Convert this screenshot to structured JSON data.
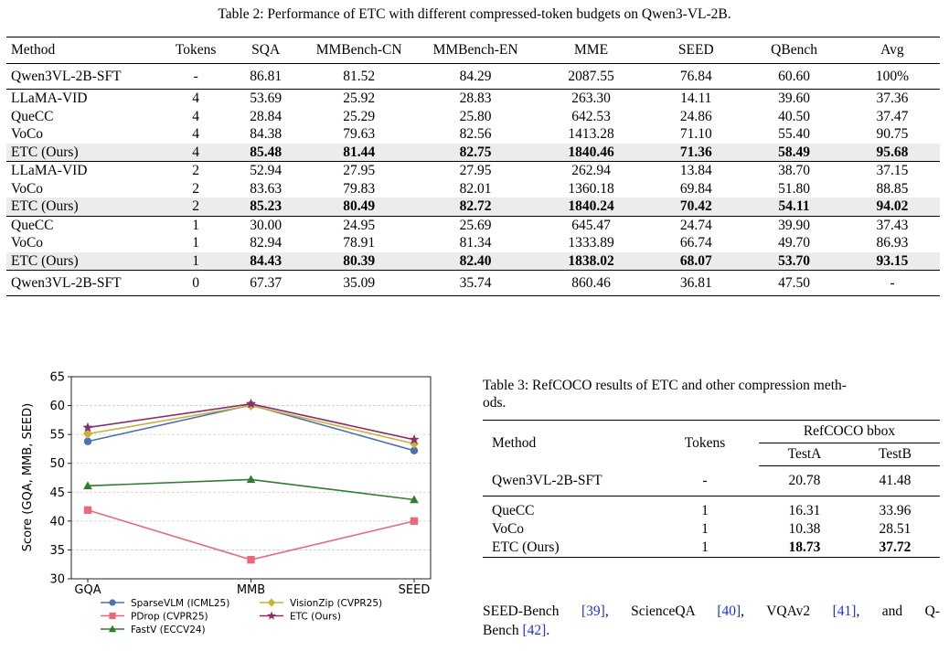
{
  "table2": {
    "caption": "Table 2: Performance of ETC with different compressed-token budgets on Qwen3-VL-2B.",
    "headers": [
      "Method",
      "Tokens",
      "SQA",
      "MMBench-CN",
      "MMBench-EN",
      "MME",
      "SEED",
      "QBench",
      "Avg"
    ],
    "rows": [
      {
        "cells": [
          "Qwen3VL-2B-SFT",
          "-",
          "86.81",
          "81.52",
          "84.29",
          "2087.55",
          "76.84",
          "60.60",
          "100%"
        ]
      },
      {
        "cells": [
          "LLaMA-VID",
          "4",
          "53.69",
          "25.92",
          "28.83",
          "263.30",
          "14.11",
          "39.60",
          "37.36"
        ]
      },
      {
        "cells": [
          "QueCC",
          "4",
          "28.84",
          "25.29",
          "25.80",
          "642.53",
          "24.86",
          "40.50",
          "37.47"
        ]
      },
      {
        "cells": [
          "VoCo",
          "4",
          "84.38",
          "79.63",
          "82.56",
          "1413.28",
          "71.10",
          "55.40",
          "90.75"
        ]
      },
      {
        "cells": [
          "ETC (Ours)",
          "4",
          "85.48",
          "81.44",
          "82.75",
          "1840.46",
          "71.36",
          "58.49",
          "95.68"
        ]
      },
      {
        "cells": [
          "LLaMA-VID",
          "2",
          "52.94",
          "27.95",
          "27.95",
          "262.94",
          "13.84",
          "38.70",
          "37.15"
        ]
      },
      {
        "cells": [
          "VoCo",
          "2",
          "83.63",
          "79.83",
          "82.01",
          "1360.18",
          "69.84",
          "51.80",
          "88.85"
        ]
      },
      {
        "cells": [
          "ETC (Ours)",
          "2",
          "85.23",
          "80.49",
          "82.72",
          "1840.24",
          "70.42",
          "54.11",
          "94.02"
        ]
      },
      {
        "cells": [
          "QueCC",
          "1",
          "30.00",
          "24.95",
          "25.69",
          "645.47",
          "24.74",
          "39.90",
          "37.43"
        ]
      },
      {
        "cells": [
          "VoCo",
          "1",
          "82.94",
          "78.91",
          "81.34",
          "1333.89",
          "66.74",
          "49.70",
          "86.93"
        ]
      },
      {
        "cells": [
          "ETC (Ours)",
          "1",
          "84.43",
          "80.39",
          "82.40",
          "1838.02",
          "68.07",
          "53.70",
          "93.15"
        ]
      },
      {
        "cells": [
          "Qwen3VL-2B-SFT",
          "0",
          "67.37",
          "35.09",
          "35.74",
          "860.46",
          "36.81",
          "47.50",
          "-"
        ]
      }
    ]
  },
  "table3": {
    "caption": "Table 3: RefCOCO results of ETC and other compression methods.",
    "caption_line1": "Table 3: RefCOCO results of ETC and other compression meth-",
    "caption_line2": "ods.",
    "h_method": "Method",
    "h_tokens": "Tokens",
    "h_group": "RefCOCO bbox",
    "h_testa": "TestA",
    "h_testb": "TestB",
    "rows": [
      {
        "cells": [
          "Qwen3VL-2B-SFT",
          "-",
          "20.78",
          "41.48"
        ]
      },
      {
        "cells": [
          "QueCC",
          "1",
          "16.31",
          "33.96"
        ]
      },
      {
        "cells": [
          "VoCo",
          "1",
          "10.38",
          "28.51"
        ]
      },
      {
        "cells": [
          "ETC (Ours)",
          "1",
          "18.73",
          "37.72"
        ]
      }
    ]
  },
  "body_text": {
    "t1": "SEED-Bench ",
    "c1": "[39]",
    "t2": ", ScienceQA ",
    "c2": "[40]",
    "t3": ", VQAv2 ",
    "c3": "[41]",
    "t4": ", and Q-",
    "t5": "Bench ",
    "c4": "[42]",
    "t6": "."
  },
  "chart_data": {
    "type": "line",
    "categories": [
      "GQA",
      "MMB",
      "SEED"
    ],
    "ylabel": "Score (GQA, MMB, SEED)",
    "ylim": [
      30,
      65
    ],
    "yticks": [
      30,
      35,
      40,
      45,
      50,
      55,
      60,
      65
    ],
    "grid": true,
    "legend_position": "bottom",
    "series": [
      {
        "name": "SparseVLM (ICML25)",
        "values": [
          53.8,
          60.1,
          52.2
        ],
        "color": "#4c72b0",
        "marker": "circle"
      },
      {
        "name": "VisionZip (CVPR25)",
        "values": [
          55.1,
          60.0,
          53.4
        ],
        "color": "#c9b23a",
        "marker": "diamond"
      },
      {
        "name": "PDrop (CVPR25)",
        "values": [
          41.9,
          33.3,
          40.0
        ],
        "color": "#e8697a",
        "marker": "square"
      },
      {
        "name": "ETC (Ours)",
        "values": [
          56.2,
          60.3,
          54.1
        ],
        "color": "#8b2f6b",
        "marker": "star"
      },
      {
        "name": "FastV (ECCV24)",
        "values": [
          46.1,
          47.2,
          43.7
        ],
        "color": "#2e7d32",
        "marker": "triangle"
      }
    ]
  }
}
